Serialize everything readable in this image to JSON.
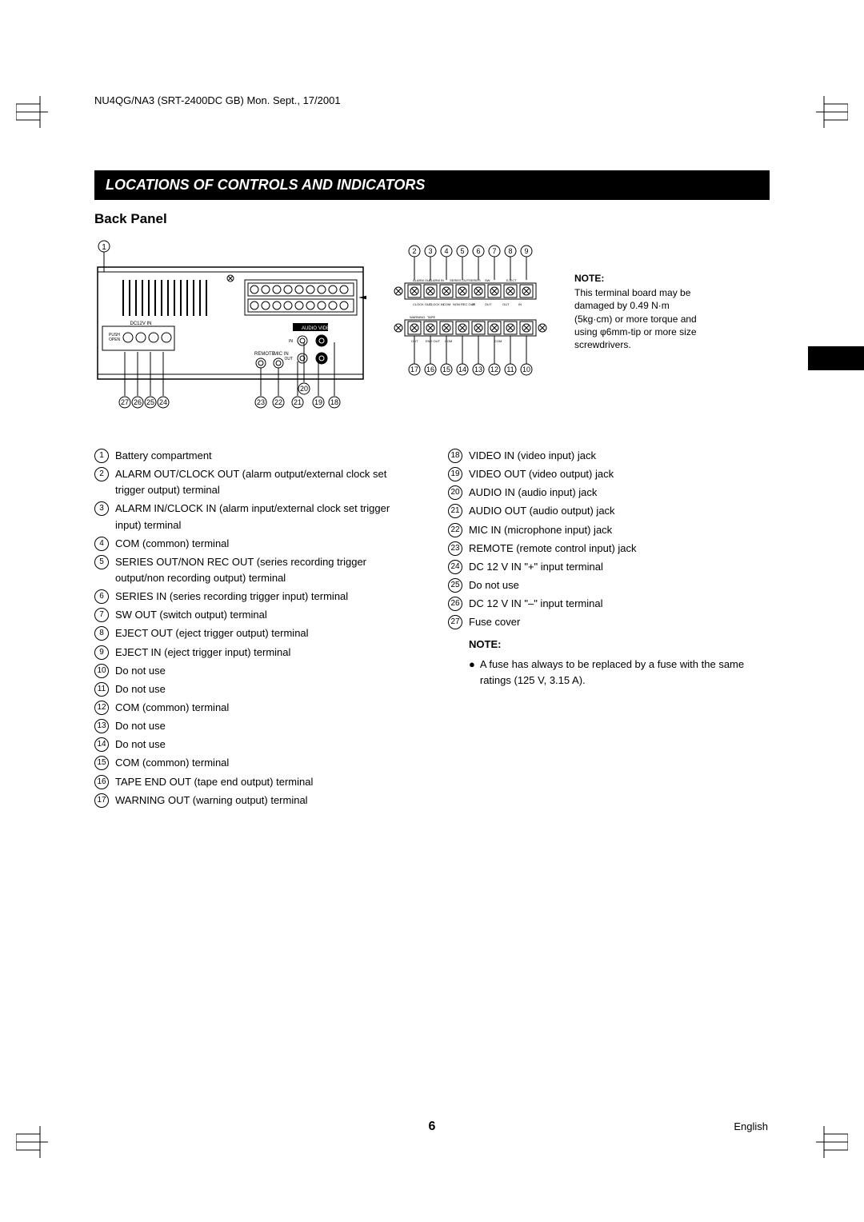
{
  "header": "NU4QG/NA3 (SRT-2400DC GB)    Mon. Sept., 17/2001",
  "section_title": "LOCATIONS OF CONTROLS AND INDICATORS",
  "subheading": "Back Panel",
  "note_box": {
    "title": "NOTE:",
    "body": "This terminal board may be damaged by 0.49 N·m (5kg·cm) or more torque and using φ6mm-tip or more size screwdrivers."
  },
  "left_items": [
    {
      "n": "1",
      "t": "Battery compartment"
    },
    {
      "n": "2",
      "t": "ALARM OUT/CLOCK OUT (alarm output/external clock set trigger output) terminal"
    },
    {
      "n": "3",
      "t": "ALARM IN/CLOCK IN  (alarm input/external clock set trigger input) terminal"
    },
    {
      "n": "4",
      "t": "COM (common) terminal"
    },
    {
      "n": "5",
      "t": "SERIES OUT/NON REC OUT (series recording trigger output/non recording output) terminal"
    },
    {
      "n": "6",
      "t": "SERIES IN (series recording trigger input) terminal"
    },
    {
      "n": "7",
      "t": "SW OUT (switch output) terminal"
    },
    {
      "n": "8",
      "t": "EJECT OUT (eject trigger output) terminal"
    },
    {
      "n": "9",
      "t": "EJECT IN (eject trigger input) terminal"
    },
    {
      "n": "10",
      "t": "Do not use"
    },
    {
      "n": "11",
      "t": "Do not use"
    },
    {
      "n": "12",
      "t": "COM (common) terminal"
    },
    {
      "n": "13",
      "t": "Do not use"
    },
    {
      "n": "14",
      "t": "Do not use"
    },
    {
      "n": "15",
      "t": "COM (common) terminal"
    },
    {
      "n": "16",
      "t": "TAPE END OUT (tape end output) terminal"
    },
    {
      "n": "17",
      "t": "WARNING OUT (warning output) terminal"
    }
  ],
  "right_items": [
    {
      "n": "18",
      "t": "VIDEO IN (video input) jack"
    },
    {
      "n": "19",
      "t": "VIDEO OUT (video output) jack"
    },
    {
      "n": "20",
      "t": "AUDIO IN (audio input) jack"
    },
    {
      "n": "21",
      "t": "AUDIO OUT (audio output) jack"
    },
    {
      "n": "22",
      "t": "MIC IN (microphone input) jack"
    },
    {
      "n": "23",
      "t": "REMOTE (remote control input) jack"
    },
    {
      "n": "24",
      "t": "DC 12 V IN \"+\" input terminal"
    },
    {
      "n": "25",
      "t": "Do not use"
    },
    {
      "n": "26",
      "t": "DC 12 V IN \"–\"  input terminal"
    },
    {
      "n": "27",
      "t": "Fuse cover"
    }
  ],
  "right_note": {
    "title": "NOTE:",
    "body": "A fuse has always to be replaced by a fuse with the same ratings (125 V, 3.15 A)."
  },
  "top_callouts": [
    "2",
    "3",
    "4",
    "5",
    "6",
    "7",
    "8",
    "9"
  ],
  "bottom_callouts": [
    "17",
    "16",
    "15",
    "14",
    "13",
    "12",
    "11",
    "10"
  ],
  "main_bottom_callouts_left": [
    "27",
    "26",
    "25",
    "24"
  ],
  "main_bottom_callouts_right": [
    "23",
    "22",
    "21",
    "19",
    "18"
  ],
  "main_extra_callout": "20",
  "diagram_labels": {
    "audio": "AUDIO",
    "video": "VIDEO",
    "remote": "REMOTE",
    "micin": "MIC IN",
    "in": "IN",
    "out": "OUT",
    "dc12v": "DC12V IN",
    "push_open": "PUSH\nOPEN",
    "top_row1": [
      "ALARM OUT\nCLOCK OUT",
      "ALARM IN\nCLOCK IN",
      "COM",
      "SERIES OUT\nNON REC OUT",
      "SERIES\nIN",
      "SW\nOUT",
      "EJECT",
      "OUT",
      "IN"
    ],
    "bottom_row1": [
      "WARNING\nOUT",
      "TAPE\nEND OUT",
      "COM",
      "",
      "COM"
    ]
  },
  "page_number": "6",
  "footer_lang": "English"
}
